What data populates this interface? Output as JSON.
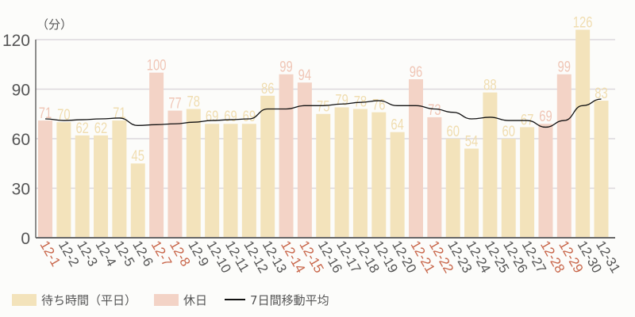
{
  "chart_data": {
    "type": "bar",
    "title": "",
    "unit_label": "（分）",
    "xlabel": "",
    "ylabel": "（分）",
    "ylim": [
      0,
      120
    ],
    "yticks": [
      0,
      30,
      60,
      90,
      120
    ],
    "grid": true,
    "legend_position": "bottom",
    "categories": [
      "12-1",
      "12-2",
      "12-3",
      "12-4",
      "12-5",
      "12-6",
      "12-7",
      "12-8",
      "12-9",
      "12-10",
      "12-11",
      "12-12",
      "12-13",
      "12-14",
      "12-15",
      "12-16",
      "12-17",
      "12-18",
      "12-19",
      "12-20",
      "12-21",
      "12-22",
      "12-23",
      "12-24",
      "12-25",
      "12-26",
      "12-27",
      "12-28",
      "12-29",
      "12-30",
      "12-31"
    ],
    "values": [
      71,
      70,
      62,
      62,
      71,
      45,
      100,
      77,
      78,
      69,
      69,
      69,
      86,
      99,
      94,
      75,
      79,
      78,
      76,
      64,
      96,
      73,
      60,
      54,
      88,
      60,
      67,
      69,
      99,
      126,
      83
    ],
    "holiday": [
      true,
      false,
      false,
      false,
      false,
      false,
      true,
      true,
      false,
      false,
      false,
      false,
      false,
      true,
      true,
      false,
      false,
      false,
      false,
      false,
      true,
      true,
      false,
      false,
      false,
      false,
      false,
      true,
      true,
      false,
      false
    ],
    "series": [
      {
        "name": "待ち時間（平日）",
        "type": "bar",
        "color": "#f3e3bb"
      },
      {
        "name": "休日",
        "type": "bar",
        "color": "#f3d3c6"
      },
      {
        "name": "7日間移動平均",
        "type": "line",
        "color": "#111111",
        "values": [
          72,
          71,
          71.5,
          72,
          72.5,
          68,
          68.5,
          69,
          70,
          71,
          71.5,
          72,
          78,
          78,
          80,
          80,
          81,
          82,
          83,
          80,
          80,
          78,
          76,
          72,
          73,
          71,
          71,
          67,
          71,
          80,
          84
        ]
      }
    ]
  },
  "colors": {
    "weekday_bar": "#f3e3bb",
    "holiday_bar": "#f3d3c6",
    "weekday_label": "#f0ddb0",
    "holiday_label": "#f0c6b6",
    "holiday_tick": "#c8664a",
    "weekday_tick": "#555555",
    "grid": "#dcd8dc",
    "axis": "#666666"
  },
  "legend": {
    "weekday": "待ち時間（平日）",
    "holiday": "休日",
    "moving_average": "7日間移動平均"
  }
}
